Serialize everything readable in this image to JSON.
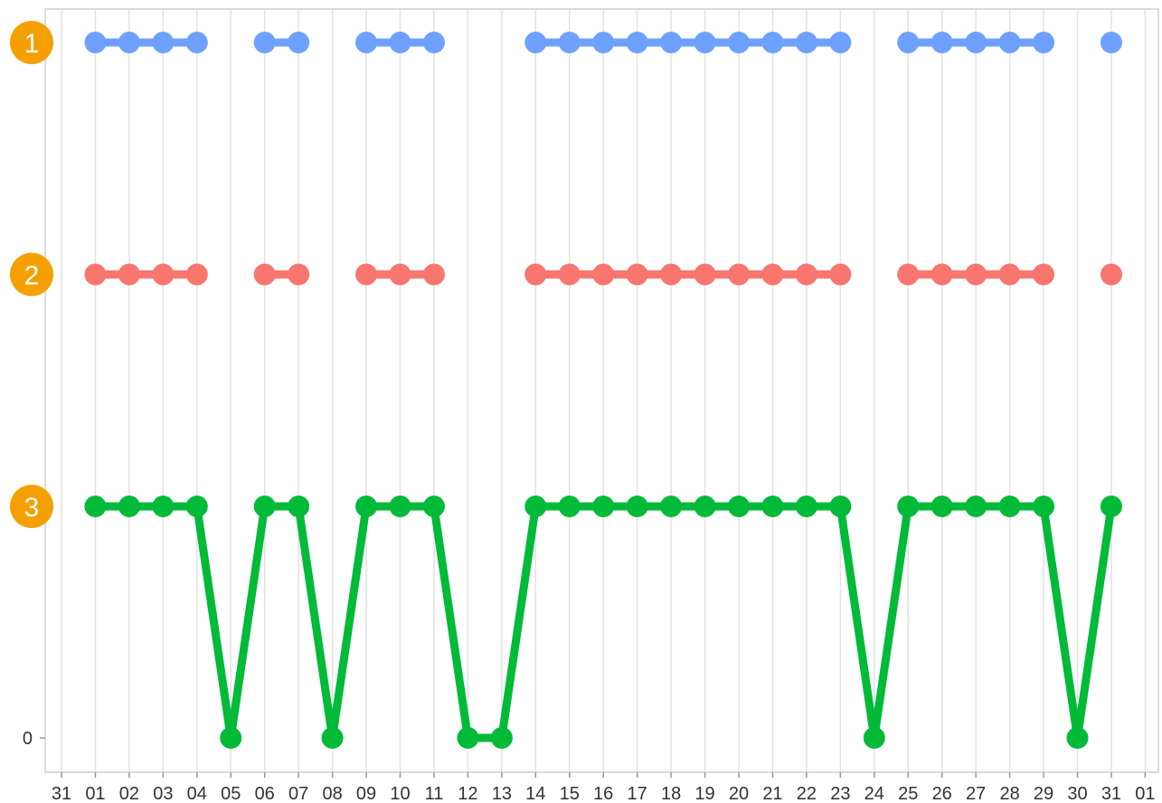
{
  "chart_data": {
    "type": "line",
    "title": "",
    "xlabel": "",
    "ylabel": "",
    "x_tick_labels": [
      "31",
      "01",
      "02",
      "03",
      "04",
      "05",
      "06",
      "07",
      "08",
      "09",
      "10",
      "11",
      "12",
      "13",
      "14",
      "15",
      "16",
      "17",
      "18",
      "19",
      "20",
      "21",
      "22",
      "23",
      "24",
      "25",
      "26",
      "27",
      "28",
      "29",
      "30",
      "31",
      "01"
    ],
    "x": [
      "01",
      "02",
      "03",
      "04",
      "05",
      "06",
      "07",
      "08",
      "09",
      "10",
      "11",
      "12",
      "13",
      "14",
      "15",
      "16",
      "17",
      "18",
      "19",
      "20",
      "21",
      "22",
      "23",
      "24",
      "25",
      "26",
      "27",
      "28",
      "29",
      "30",
      "31"
    ],
    "y_tick_labels": [
      {
        "value": 0,
        "label": "0"
      }
    ],
    "ylim": [
      -0.15,
      3.2
    ],
    "grid": {
      "vertical": true,
      "horizontal": false
    },
    "series": [
      {
        "label": "1",
        "color": "#6ea1ff",
        "values": [
          1,
          1,
          1,
          1,
          null,
          1,
          1,
          null,
          1,
          1,
          1,
          null,
          null,
          1,
          1,
          1,
          1,
          1,
          1,
          1,
          1,
          1,
          1,
          null,
          1,
          1,
          1,
          1,
          1,
          null,
          1
        ]
      },
      {
        "label": "2",
        "color": "#f8766d",
        "values": [
          1,
          1,
          1,
          1,
          null,
          1,
          1,
          null,
          1,
          1,
          1,
          null,
          null,
          1,
          1,
          1,
          1,
          1,
          1,
          1,
          1,
          1,
          1,
          null,
          1,
          1,
          1,
          1,
          1,
          null,
          1
        ]
      },
      {
        "label": "3",
        "color": "#00ba38",
        "values": [
          1,
          1,
          1,
          1,
          0,
          1,
          1,
          0,
          1,
          1,
          1,
          0,
          0,
          1,
          1,
          1,
          1,
          1,
          1,
          1,
          1,
          1,
          1,
          0,
          1,
          1,
          1,
          1,
          1,
          0,
          1
        ]
      }
    ],
    "badge_color": "#f5a000"
  }
}
